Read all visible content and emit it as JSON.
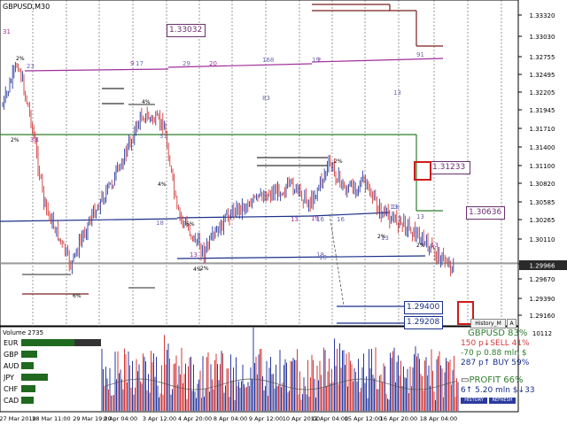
{
  "chart": {
    "symbol_title": "GBPUSD,M30",
    "price_axis_labels": [
      "1.33320",
      "1.33030",
      "1.32755",
      "1.32495",
      "1.32205",
      "1.31945",
      "1.31710",
      "1.31400",
      "1.31100",
      "1.30820",
      "1.30585",
      "1.30265",
      "1.30110",
      "1.29966",
      "1.29670",
      "1.29390",
      "1.29160"
    ],
    "time_axis_labels": [
      "27 Mar 2019",
      "28 Mar 11:00",
      "29 Mar 19:00",
      "2 Apr 04:00",
      "3 Apr 12:00",
      "4 Apr 20:00",
      "8 Apr 04:00",
      "9 Apr 12:00",
      "10 Apr 20:00",
      "12 Apr 04:00",
      "15 Apr 12:00",
      "16 Apr 20:00",
      "18 Apr 04:00"
    ],
    "current_price": "1.29966",
    "price_boxes": [
      "1.33032",
      "1.31233",
      "1.30636",
      "1.29400",
      "1.29208"
    ],
    "level_labels": [
      "31",
      "2%",
      "23",
      "9",
      "17",
      "29",
      "20",
      "168",
      "19",
      "2",
      "91",
      "13",
      "4%",
      "83",
      "2%",
      "33",
      "31",
      "4%",
      "6%",
      "2%",
      "18",
      "13",
      "18",
      "2%",
      "19",
      "13",
      "13",
      "2%",
      "16",
      "18",
      "13",
      "16",
      "13",
      "6%",
      "1",
      "18",
      "13",
      "2%",
      "4%"
    ],
    "history_button": "History_M",
    "zoom_marker": "A"
  },
  "volume_pane": {
    "title": "Volume 2735",
    "max_label": "10112",
    "currency_rows": [
      "EUR",
      "GBP",
      "AUD",
      "JPY",
      "CHF",
      "CAD"
    ]
  },
  "info_panel": {
    "pair_line": "GBPUSD 83%",
    "sell_line": "150 p↓SELL 41%",
    "mln_line": "-70 p   0.88 mln $",
    "buy_line": "287 p↑  BUY 59%",
    "profit_line": "PROFIT 66%",
    "bottom_line": "6↑   5.20 mln $↓33",
    "history_button": "HISTORY",
    "refresh_button": "REFRESH"
  },
  "colors": {
    "bull_candle": "#2b3a9e",
    "bear_candle": "#d23a3a",
    "resistance": "#7a1f1f",
    "support": "#1a2f8a",
    "green_line": "#2f7d2f",
    "magenta": "#a0309a"
  }
}
